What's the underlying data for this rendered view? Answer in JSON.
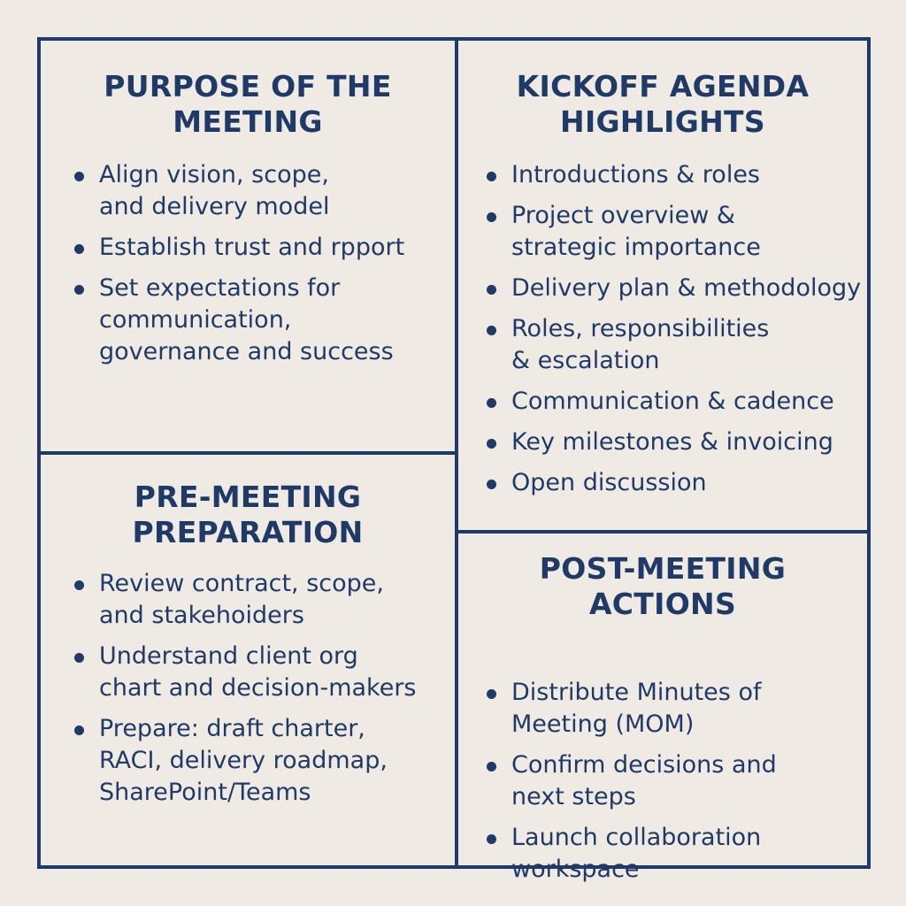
{
  "colors": {
    "background": "#efebe4",
    "ink": "#1f3a66"
  },
  "icons": {
    "bullet": "bullet-dot-icon"
  },
  "panels": {
    "purpose": {
      "title": "PURPOSE OF THE\nMEETING",
      "items": [
        "Align vision, scope,\nand delivery model",
        "Establish trust and rpport",
        "Set expectations for\ncommunication,\ngovernance and success"
      ]
    },
    "agenda": {
      "title": "KICKOFF AGENDA\nHIGHLIGHTS",
      "items": [
        "Introductions & roles",
        "Project overview &\nstrategic importance",
        "Delivery plan & methodology",
        "Roles, responsibilities\n& escalation",
        "Communication & cadence",
        "Key milestones & invoicing",
        "Open discussion"
      ]
    },
    "pre": {
      "title": "PRE-MEETING\nPREPARATION",
      "items": [
        "Review contract, scope,\nand stakehoiders",
        "Understand client org\nchart and decision-makers",
        "Prepare: draft charter,\nRACI, delivery roadmap,\nSharePoint/Teams"
      ]
    },
    "post": {
      "title": "POST-MEETING\nACTIONS",
      "items": [
        "Distribute Minutes of\nMeeting (MOM)",
        "Confirm decisions and\nnext steps",
        "Launch collaboration\nworkspace"
      ]
    }
  }
}
